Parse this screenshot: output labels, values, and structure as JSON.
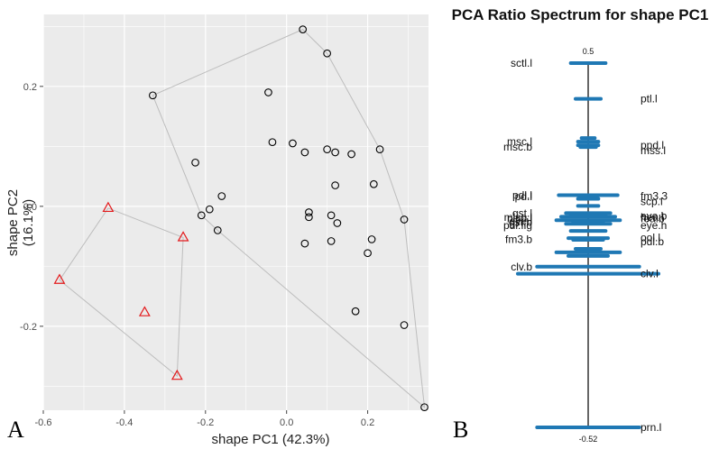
{
  "chart_data": [
    {
      "type": "scatter",
      "panel_label": "A",
      "xlabel": "shape PC1 (42.3%)",
      "ylabel": "shape PC2 (16.1%)",
      "xlim": [
        -0.6,
        0.35
      ],
      "ylim": [
        -0.34,
        0.32
      ],
      "x_ticks": [
        -0.6,
        -0.4,
        -0.2,
        0.0,
        0.2
      ],
      "x_tick_labels": [
        "-0.6",
        "-0.4",
        "-0.2",
        "0.0",
        "0.2"
      ],
      "y_ticks": [
        -0.2,
        0.0,
        0.2
      ],
      "y_tick_labels": [
        "-0.2",
        "0.0",
        "0.2"
      ],
      "grid": true,
      "colors": {
        "background": "#ebebeb",
        "grid": "#ffffff",
        "circle": "#000000",
        "triangle": "#e31a1c",
        "hull": "#bdbdbd"
      },
      "series": [
        {
          "marker": "circle",
          "points": [
            [
              0.04,
              0.295
            ],
            [
              0.1,
              0.255
            ],
            [
              -0.33,
              0.185
            ],
            [
              -0.045,
              0.19
            ],
            [
              -0.035,
              0.107
            ],
            [
              0.015,
              0.105
            ],
            [
              0.045,
              0.09
            ],
            [
              0.1,
              0.095
            ],
            [
              0.12,
              0.09
            ],
            [
              0.16,
              0.087
            ],
            [
              0.23,
              0.095
            ],
            [
              -0.225,
              0.073
            ],
            [
              0.12,
              0.035
            ],
            [
              0.215,
              0.037
            ],
            [
              -0.16,
              0.017
            ],
            [
              -0.21,
              -0.015
            ],
            [
              -0.19,
              -0.005
            ],
            [
              0.055,
              -0.01
            ],
            [
              0.055,
              -0.018
            ],
            [
              0.11,
              -0.015
            ],
            [
              0.125,
              -0.028
            ],
            [
              0.29,
              -0.022
            ],
            [
              -0.17,
              -0.04
            ],
            [
              0.21,
              -0.055
            ],
            [
              0.045,
              -0.062
            ],
            [
              0.11,
              -0.058
            ],
            [
              0.2,
              -0.078
            ],
            [
              0.17,
              -0.175
            ],
            [
              0.29,
              -0.198
            ],
            [
              0.34,
              -0.335
            ]
          ]
        },
        {
          "marker": "triangle",
          "points": [
            [
              -0.44,
              -0.003
            ],
            [
              -0.255,
              -0.052
            ],
            [
              -0.56,
              -0.123
            ],
            [
              -0.35,
              -0.177
            ],
            [
              -0.27,
              -0.283
            ]
          ]
        }
      ]
    },
    {
      "type": "bar",
      "panel_label": "B",
      "title": "PCA Ratio Spectrum for shape PC1",
      "top_value_label": "0.5",
      "bottom_value_label": "-0.52",
      "ylim": [
        -0.55,
        0.55
      ],
      "colors": {
        "bar": "#1f78b4",
        "axis": "#000000"
      },
      "bars": [
        {
          "y": 0.5,
          "width": 0.08
        },
        {
          "y": 0.4,
          "width": 0.06
        },
        {
          "y": 0.29,
          "width": 0.035
        },
        {
          "y": 0.28,
          "width": 0.05
        },
        {
          "y": 0.27,
          "width": 0.05
        },
        {
          "y": 0.265,
          "width": 0.04
        },
        {
          "y": 0.13,
          "width": 0.13
        },
        {
          "y": 0.12,
          "width": 0.05
        },
        {
          "y": 0.1,
          "width": 0.05
        },
        {
          "y": 0.08,
          "width": 0.1
        },
        {
          "y": 0.075,
          "width": 0.08
        },
        {
          "y": 0.07,
          "width": 0.12
        },
        {
          "y": 0.06,
          "width": 0.14
        },
        {
          "y": 0.055,
          "width": 0.07
        },
        {
          "y": 0.05,
          "width": 0.1
        },
        {
          "y": 0.03,
          "width": 0.08
        },
        {
          "y": 0.01,
          "width": 0.09
        },
        {
          "y": 0.005,
          "width": 0.07
        },
        {
          "y": -0.02,
          "width": 0.06
        },
        {
          "y": -0.03,
          "width": 0.14
        },
        {
          "y": -0.04,
          "width": 0.09
        },
        {
          "y": -0.07,
          "width": 0.22
        },
        {
          "y": -0.09,
          "width": 0.3
        },
        {
          "y": -0.52,
          "width": 0.22
        }
      ],
      "left_labels": [
        {
          "text": "sctl.l",
          "y": 0.5
        },
        {
          "text": "msc.l",
          "y": 0.28
        },
        {
          "text": "msc.b",
          "y": 0.265
        },
        {
          "text": "pdl.l",
          "y": 0.13
        },
        {
          "text": "pd.l",
          "y": 0.126
        },
        {
          "text": "gst.l",
          "y": 0.08
        },
        {
          "text": "mlsp.l",
          "y": 0.068
        },
        {
          "text": "nlsp.l",
          "y": 0.064
        },
        {
          "text": "eye.l",
          "y": 0.058
        },
        {
          "text": "gst.b",
          "y": 0.054
        },
        {
          "text": "pdl.fig",
          "y": 0.045
        },
        {
          "text": "fm3.b",
          "y": 0.006
        },
        {
          "text": "clv.b",
          "y": -0.07
        }
      ],
      "right_labels": [
        {
          "text": "ptl.l",
          "y": 0.4
        },
        {
          "text": "ppd.l",
          "y": 0.27
        },
        {
          "text": "mss.l",
          "y": 0.255
        },
        {
          "text": "fm3.3",
          "y": 0.128
        },
        {
          "text": "scp.l",
          "y": 0.113
        },
        {
          "text": "eye.b",
          "y": 0.072
        },
        {
          "text": "hea.l",
          "y": 0.068
        },
        {
          "text": "fea.b",
          "y": 0.064
        },
        {
          "text": "eye.h",
          "y": 0.045
        },
        {
          "text": "ool.l",
          "y": 0.012
        },
        {
          "text": "pdl.b",
          "y": 0.0
        },
        {
          "text": "clv.l",
          "y": -0.09
        },
        {
          "text": "prn.l",
          "y": -0.52
        }
      ]
    }
  ]
}
